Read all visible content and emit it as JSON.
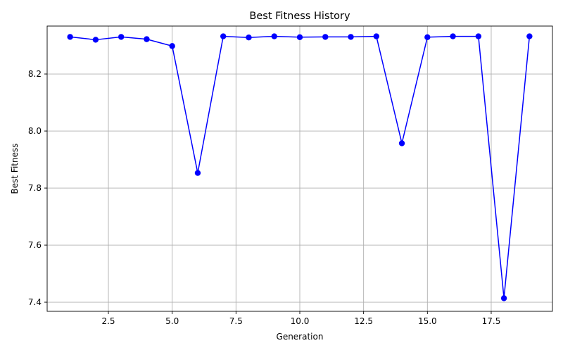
{
  "chart_data": {
    "type": "line",
    "title": "Best Fitness History",
    "xlabel": "Generation",
    "ylabel": "Best Fitness",
    "xlim": [
      0.1,
      19.9
    ],
    "ylim": [
      7.368,
      8.368
    ],
    "xticks": [
      2.5,
      5.0,
      7.5,
      10.0,
      12.5,
      15.0,
      17.5
    ],
    "xtick_labels": [
      "2.5",
      "5.0",
      "7.5",
      "10.0",
      "12.5",
      "15.0",
      "17.5"
    ],
    "yticks": [
      7.4,
      7.6,
      7.8,
      8.0,
      8.2
    ],
    "ytick_labels": [
      "7.4",
      "7.6",
      "7.8",
      "8.0",
      "8.2"
    ],
    "grid": true,
    "series": [
      {
        "color": "#0000ff",
        "marker": "circle",
        "x": [
          1,
          2,
          3,
          4,
          5,
          6,
          7,
          8,
          9,
          10,
          11,
          12,
          13,
          14,
          15,
          16,
          17,
          18,
          19
        ],
        "values": [
          8.33,
          8.32,
          8.33,
          8.322,
          8.298,
          7.853,
          8.332,
          8.328,
          8.332,
          8.329,
          8.33,
          8.33,
          8.332,
          7.957,
          8.329,
          8.332,
          8.332,
          7.414,
          8.332
        ]
      }
    ]
  }
}
